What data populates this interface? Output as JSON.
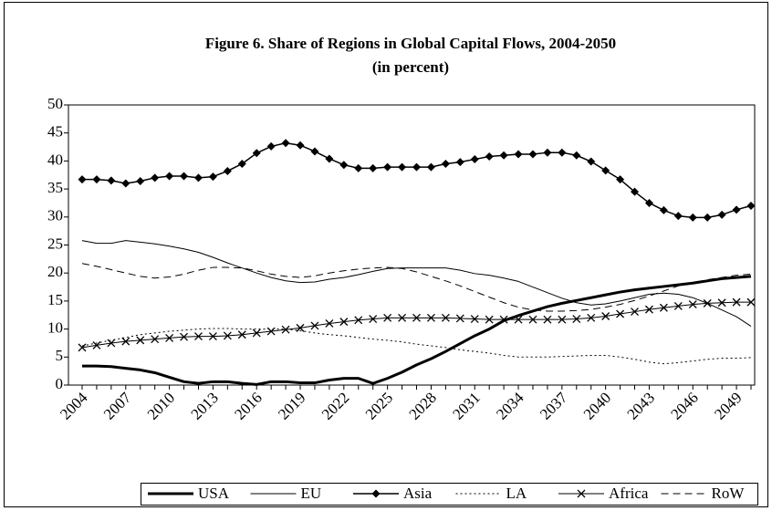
{
  "chart_data": {
    "type": "line",
    "title": "Figure 6. Share of Regions in Global Capital Flows, 2004-2050",
    "subtitle": "(in percent)",
    "categories": [
      "2004",
      null,
      null,
      "2007",
      null,
      null,
      "2010",
      null,
      null,
      "2013",
      null,
      null,
      "2016",
      null,
      null,
      "2019",
      null,
      null,
      "2022",
      null,
      null,
      "2025",
      null,
      null,
      "2028",
      null,
      null,
      "2031",
      null,
      null,
      "2034",
      null,
      null,
      "2037",
      null,
      null,
      "2040",
      null,
      null,
      "2043",
      null,
      null,
      "2046",
      null,
      null,
      "2049",
      null
    ],
    "ylim": [
      0,
      50
    ],
    "yticks": [
      0,
      5,
      10,
      15,
      20,
      25,
      30,
      35,
      40,
      45,
      50
    ],
    "legend": "bottom",
    "series": [
      {
        "name": "USA",
        "color": "#000000",
        "line_width": 3,
        "dash": "solid",
        "marker": "none",
        "values": [
          3.4,
          3.4,
          3.3,
          3,
          2.7,
          2.2,
          1.4,
          0.6,
          0.3,
          0.6,
          0.6,
          0.3,
          0.1,
          0.6,
          0.6,
          0.4,
          0.4,
          0.9,
          1.2,
          1.2,
          0.3,
          1.2,
          2.3,
          3.6,
          4.7,
          6,
          7.4,
          8.8,
          10,
          11.5,
          12.4,
          13.2,
          14,
          14.6,
          15.1,
          15.6,
          16.1,
          16.6,
          17,
          17.3,
          17.6,
          17.9,
          18.2,
          18.6,
          19,
          19.2,
          19.4
        ]
      },
      {
        "name": "EU",
        "color": "#000000",
        "line_width": 1,
        "dash": "solid",
        "marker": "none",
        "values": [
          25.8,
          25.3,
          25.3,
          25.8,
          25.5,
          25.2,
          24.8,
          24.3,
          23.7,
          22.8,
          21.8,
          20.9,
          20,
          19.2,
          18.6,
          18.3,
          18.4,
          18.9,
          19.2,
          19.7,
          20.3,
          20.8,
          20.9,
          20.9,
          20.9,
          20.9,
          20.5,
          19.9,
          19.6,
          19.1,
          18.5,
          17.5,
          16.5,
          15.5,
          14.7,
          14.3,
          14.5,
          15,
          15.6,
          16.2,
          16.4,
          16.2,
          15.6,
          14.6,
          13.4,
          12.2,
          10.5
        ]
      },
      {
        "name": "Asia",
        "color": "#000000",
        "line_width": 1.5,
        "dash": "solid",
        "marker": "diamond",
        "values": [
          36.7,
          36.7,
          36.5,
          36,
          36.4,
          37,
          37.3,
          37.3,
          37,
          37.2,
          38.2,
          39.5,
          41.4,
          42.6,
          43.2,
          42.8,
          41.7,
          40.4,
          39.3,
          38.7,
          38.7,
          38.9,
          38.9,
          38.9,
          38.9,
          39.5,
          39.8,
          40.3,
          40.8,
          41,
          41.2,
          41.2,
          41.5,
          41.5,
          41,
          39.9,
          38.3,
          36.7,
          34.5,
          32.5,
          31.2,
          30.2,
          29.9,
          29.9,
          30.4,
          31.3,
          32
        ]
      },
      {
        "name": "LA",
        "color": "#000000",
        "line_width": 1,
        "dash": "dotted",
        "marker": "none",
        "values": [
          7,
          7.5,
          8,
          8.5,
          9,
          9.3,
          9.6,
          9.8,
          10,
          10.1,
          10.1,
          10,
          10,
          10,
          10,
          9.7,
          9.3,
          9,
          8.8,
          8.5,
          8.2,
          8,
          7.7,
          7.3,
          7,
          6.7,
          6.3,
          6,
          5.7,
          5.3,
          5,
          5,
          5,
          5.1,
          5.2,
          5.3,
          5.3,
          5,
          4.6,
          4.1,
          3.8,
          4,
          4.3,
          4.6,
          4.8,
          4.8,
          4.9
        ]
      },
      {
        "name": "Africa",
        "color": "#000000",
        "line_width": 1,
        "dash": "solid",
        "marker": "x",
        "values": [
          6.7,
          7.1,
          7.5,
          7.8,
          8,
          8.2,
          8.4,
          8.6,
          8.7,
          8.7,
          8.8,
          9,
          9.3,
          9.6,
          9.9,
          10.2,
          10.6,
          11,
          11.3,
          11.6,
          11.8,
          12,
          12,
          12,
          12,
          12,
          11.9,
          11.8,
          11.7,
          11.7,
          11.7,
          11.7,
          11.7,
          11.7,
          11.8,
          12,
          12.3,
          12.7,
          13.1,
          13.5,
          13.8,
          14.1,
          14.4,
          14.6,
          14.7,
          14.8,
          14.8
        ]
      },
      {
        "name": "RoW",
        "color": "#000000",
        "line_width": 1,
        "dash": "dashed",
        "marker": "none",
        "values": [
          21.7,
          21.2,
          20.6,
          20,
          19.4,
          19.1,
          19.3,
          19.8,
          20.5,
          21,
          21,
          20.9,
          20.4,
          19.8,
          19.4,
          19.2,
          19.5,
          20,
          20.4,
          20.7,
          20.9,
          21,
          20.8,
          20.2,
          19.4,
          18.6,
          17.7,
          16.7,
          15.7,
          14.7,
          13.9,
          13.4,
          13.2,
          13.2,
          13.3,
          13.5,
          13.9,
          14.4,
          15.1,
          15.9,
          16.8,
          17.7,
          18.3,
          18.8,
          19.2,
          19.6,
          19.8
        ]
      }
    ]
  }
}
